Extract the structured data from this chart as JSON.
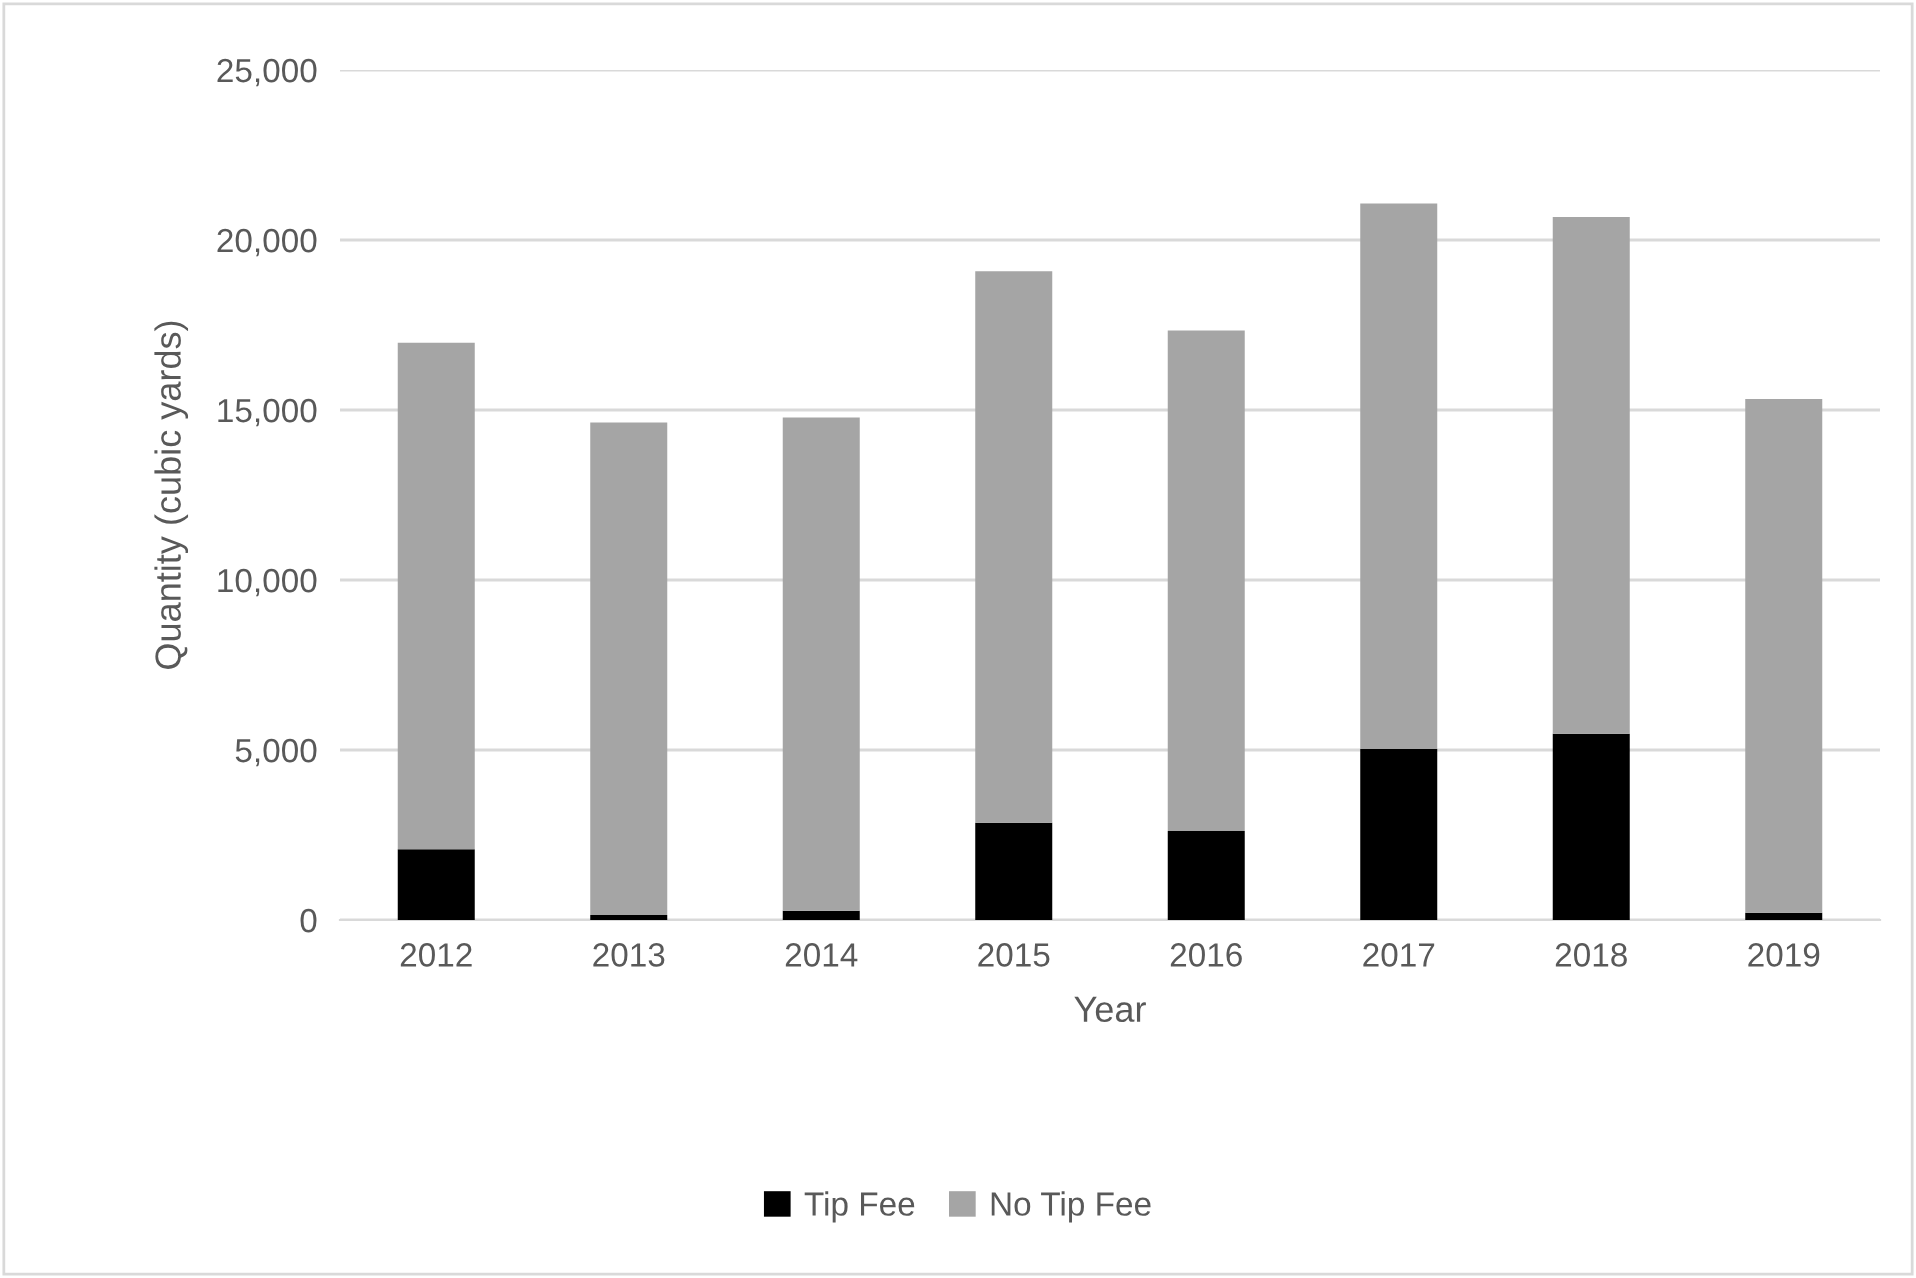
{
  "chart_data": {
    "type": "bar",
    "stacked": true,
    "xlabel": "Year",
    "ylabel": "Quantity (cubic yards)",
    "categories": [
      "2012",
      "2013",
      "2014",
      "2015",
      "2016",
      "2017",
      "2018",
      "2019"
    ],
    "series": [
      {
        "name": "Tip Fee",
        "color": "#000000",
        "values": [
          2080,
          150,
          270,
          2860,
          2620,
          5030,
          5480,
          210
        ]
      },
      {
        "name": "No Tip Fee",
        "color": "#a5a5a5",
        "values": [
          14900,
          14480,
          14510,
          16220,
          14720,
          16040,
          15200,
          15110
        ]
      }
    ],
    "ylim": [
      0,
      25000
    ],
    "yticks": [
      {
        "value": 0,
        "label": "0"
      },
      {
        "value": 5000,
        "label": "5,000"
      },
      {
        "value": 10000,
        "label": "10,000"
      },
      {
        "value": 15000,
        "label": "15,000"
      },
      {
        "value": 20000,
        "label": "20,000"
      },
      {
        "value": 25000,
        "label": "25,000"
      }
    ],
    "grid": "y",
    "legend": "bottom"
  }
}
